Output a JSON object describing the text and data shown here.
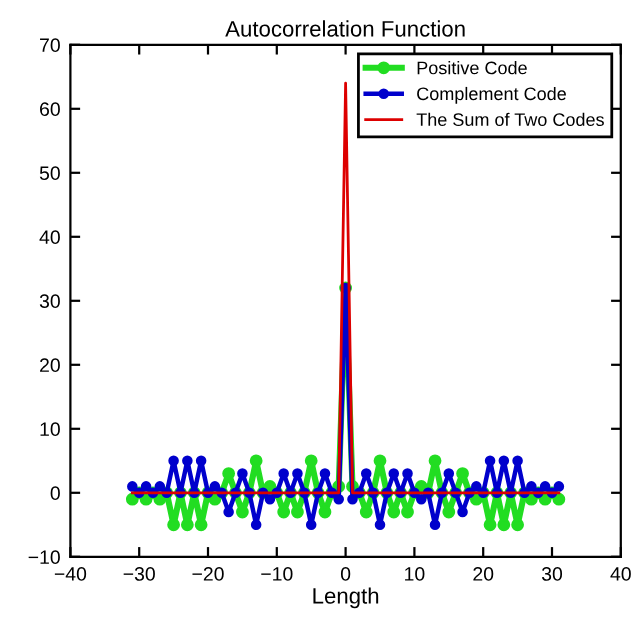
{
  "chart_data": {
    "type": "line",
    "title": "Autocorrelation Function",
    "xlabel": "Length",
    "x": [
      -31,
      -30,
      -29,
      -28,
      -27,
      -26,
      -25,
      -24,
      -23,
      -22,
      -21,
      -20,
      -19,
      -18,
      -17,
      -16,
      -15,
      -14,
      -13,
      -12,
      -11,
      -10,
      -9,
      -8,
      -7,
      -6,
      -5,
      -4,
      -3,
      -2,
      -1,
      0,
      1,
      2,
      3,
      4,
      5,
      6,
      7,
      8,
      9,
      10,
      11,
      12,
      13,
      14,
      15,
      16,
      17,
      18,
      19,
      20,
      21,
      22,
      23,
      24,
      25,
      26,
      27,
      28,
      29,
      30,
      31
    ],
    "series": [
      {
        "name": "Positive Code",
        "color": "#22dd22",
        "marker": "circle",
        "values": [
          -1,
          0,
          -1,
          0,
          -1,
          0,
          -5,
          0,
          -5,
          0,
          -5,
          0,
          -1,
          0,
          3,
          0,
          -3,
          0,
          5,
          0,
          1,
          0,
          -3,
          0,
          -3,
          0,
          5,
          0,
          -3,
          0,
          1,
          32,
          1,
          0,
          -3,
          0,
          5,
          0,
          -3,
          0,
          -3,
          0,
          1,
          0,
          5,
          0,
          -3,
          0,
          3,
          0,
          -1,
          0,
          -5,
          0,
          -5,
          0,
          -5,
          0,
          -1,
          0,
          -1,
          0,
          -1
        ]
      },
      {
        "name": "Complement Code",
        "color": "#0000cc",
        "marker": "circle",
        "values": [
          1,
          0,
          1,
          0,
          1,
          0,
          5,
          0,
          5,
          0,
          5,
          0,
          1,
          0,
          -3,
          0,
          3,
          0,
          -5,
          0,
          -1,
          0,
          3,
          0,
          3,
          0,
          -5,
          0,
          3,
          0,
          -1,
          32,
          -1,
          0,
          3,
          0,
          -5,
          0,
          3,
          0,
          3,
          0,
          -1,
          0,
          -5,
          0,
          3,
          0,
          -3,
          0,
          1,
          0,
          5,
          0,
          5,
          0,
          5,
          0,
          1,
          0,
          1,
          0,
          1
        ]
      },
      {
        "name": "The Sum of Two Codes",
        "color": "#dd0000",
        "marker": "none",
        "values": [
          0,
          0,
          0,
          0,
          0,
          0,
          0,
          0,
          0,
          0,
          0,
          0,
          0,
          0,
          0,
          0,
          0,
          0,
          0,
          0,
          0,
          0,
          0,
          0,
          0,
          0,
          0,
          0,
          0,
          0,
          0,
          64,
          0,
          0,
          0,
          0,
          0,
          0,
          0,
          0,
          0,
          0,
          0,
          0,
          0,
          0,
          0,
          0,
          0,
          0,
          0,
          0,
          0,
          0,
          0,
          0,
          0,
          0,
          0,
          0,
          0,
          0,
          0
        ]
      }
    ],
    "xlim": [
      -40,
      40
    ],
    "xticks": [
      -40,
      -30,
      -20,
      -10,
      0,
      10,
      20,
      30,
      40
    ],
    "ylim": [
      -10,
      70
    ],
    "yticks": [
      -10,
      0,
      10,
      20,
      30,
      40,
      50,
      60,
      70
    ],
    "grid": false,
    "legend": "top right"
  }
}
